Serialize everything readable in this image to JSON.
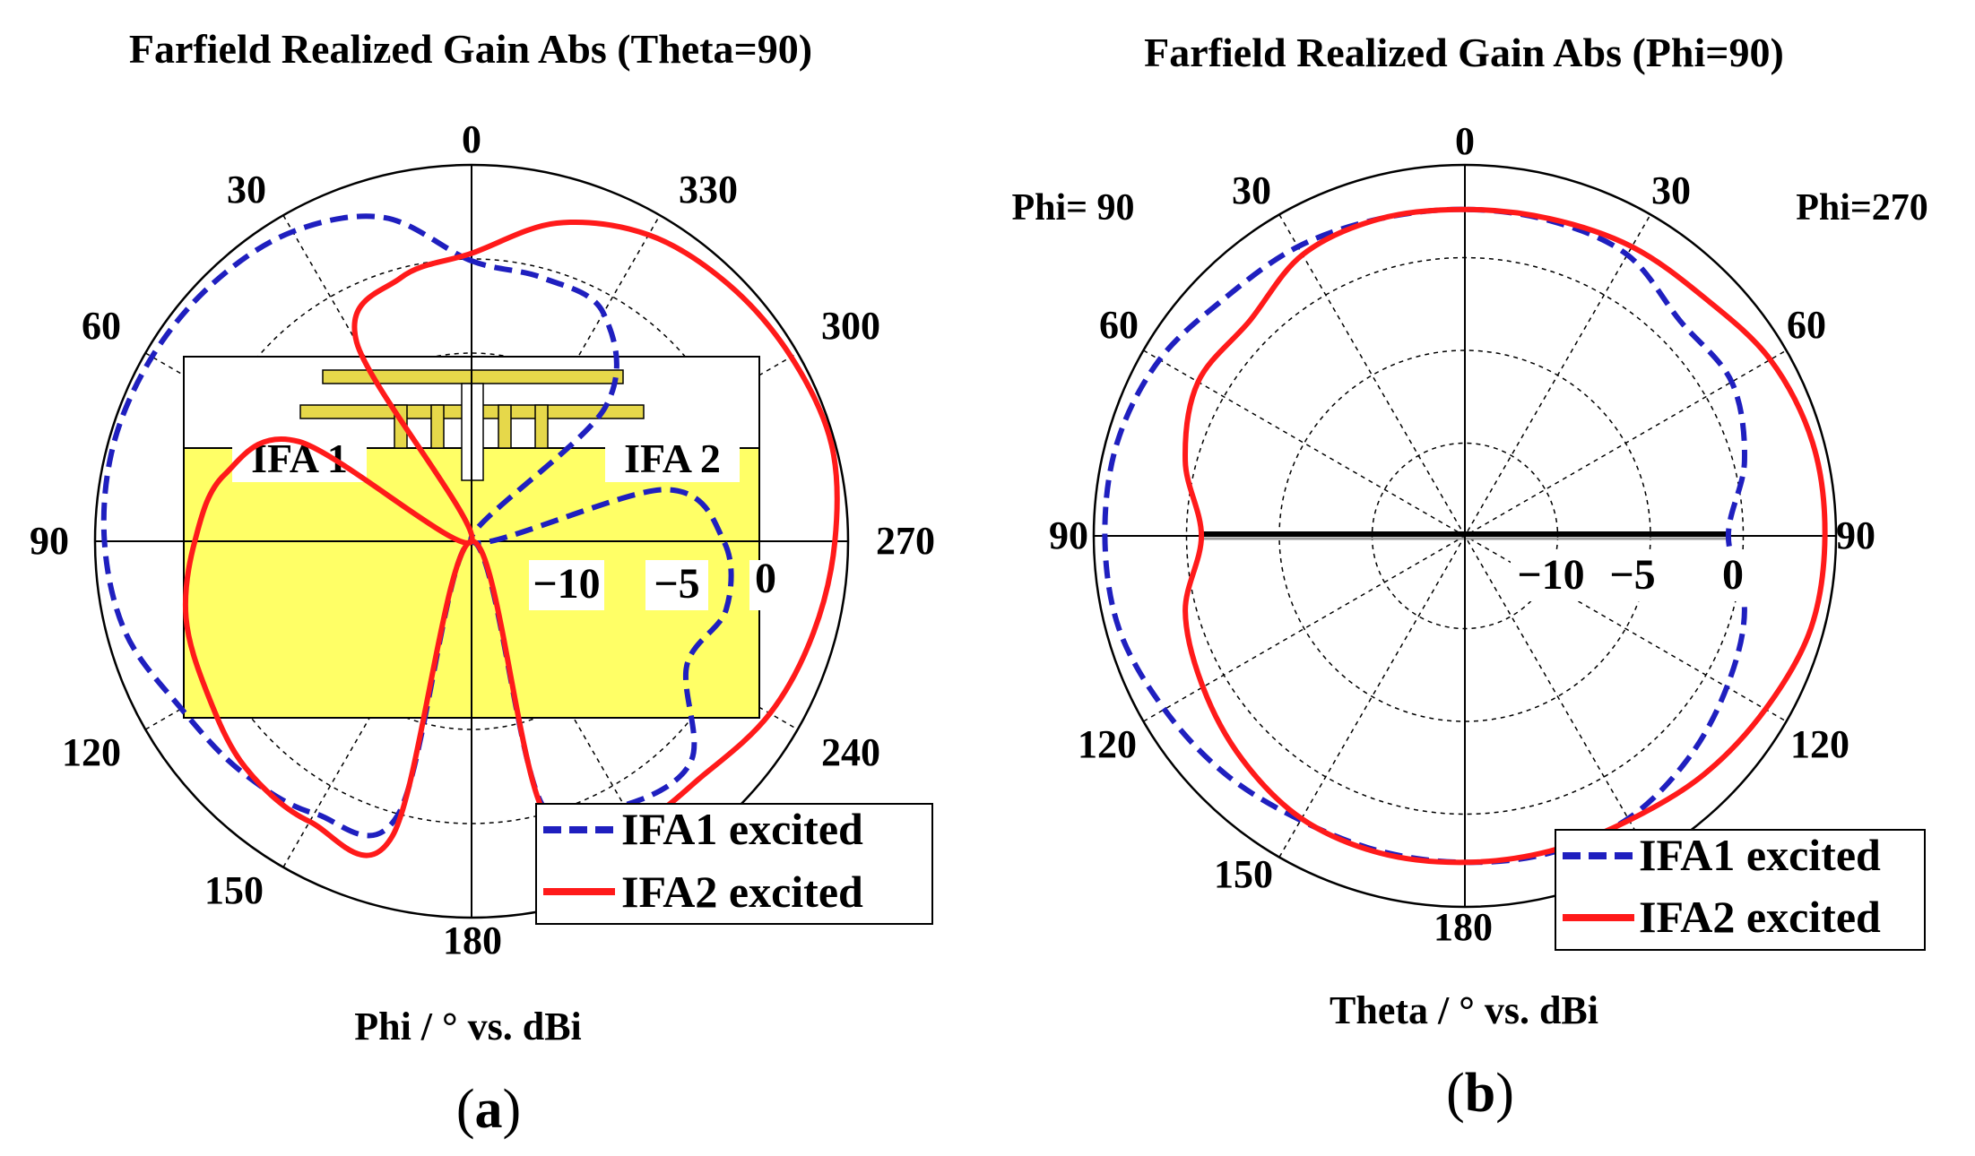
{
  "colors": {
    "ifa1": "#1f1fbf",
    "ifa2": "#ff1a1a",
    "pcb": "#ffff44",
    "antenna": "#e6d84a"
  },
  "panels": [
    {
      "id": "a",
      "title": "Farfield Realized Gain Abs (Theta=90)",
      "xlabel": "Phi / ° vs. dBi",
      "caption_open": "(",
      "caption_letter": "a",
      "caption_close": ")",
      "angle_labels": [
        "0",
        "30",
        "60",
        "90",
        "120",
        "150",
        "180",
        "240",
        "270",
        "300",
        "330"
      ],
      "radial_ticks": [
        "−10",
        "−5",
        "0"
      ],
      "inset_labels": [
        "IFA 1",
        "IFA 2"
      ],
      "legend": [
        "IFA1 excited",
        "IFA2 excited"
      ]
    },
    {
      "id": "b",
      "title": "Farfield Realized Gain Abs (Phi=90)",
      "xlabel": "Theta / ° vs. dBi",
      "caption_open": "(",
      "caption_letter": "b",
      "caption_close": ")",
      "side_labels": [
        "Phi= 90",
        "Phi=270"
      ],
      "angle_labels_left": [
        "0",
        "30",
        "60",
        "90",
        "120",
        "150",
        "180"
      ],
      "angle_labels_right": [
        "30",
        "60",
        "90",
        "120"
      ],
      "radial_ticks": [
        "−10",
        "−5",
        "0"
      ],
      "legend": [
        "IFA1 excited",
        "IFA2 excited"
      ]
    }
  ],
  "chart_data": [
    {
      "type": "polar-line",
      "title": "Farfield Realized Gain Abs (Theta=90)",
      "angle_unit": "deg (Phi)",
      "radial_unit": "dBi",
      "radial_range": [
        -20,
        0
      ],
      "radial_ticks": [
        -15,
        -10,
        -5,
        0
      ],
      "series": [
        {
          "name": "IFA1 excited",
          "style": "dashed",
          "angles": [
            0,
            15,
            30,
            45,
            60,
            75,
            90,
            105,
            120,
            135,
            150,
            165,
            180,
            195,
            210,
            225,
            240,
            255,
            270,
            285,
            300,
            315,
            330,
            345,
            360
          ],
          "values": [
            -5.1,
            -2.2,
            -1.0,
            -0.6,
            -0.4,
            -0.3,
            -0.5,
            -1.0,
            -2.2,
            -2.7,
            -3.3,
            -5.0,
            -20.0,
            -5.5,
            -3.8,
            -3.5,
            -6.8,
            -6.0,
            -6.6,
            -9.4,
            -20.0,
            -10.0,
            -6.0,
            -5.5,
            -5.1
          ]
        },
        {
          "name": "IFA2 excited",
          "style": "solid",
          "angles": [
            0,
            15,
            30,
            45,
            60,
            75,
            90,
            105,
            120,
            135,
            150,
            165,
            180,
            195,
            210,
            225,
            240,
            255,
            270,
            285,
            300,
            315,
            330,
            345,
            360
          ],
          "values": [
            -4.7,
            -5.5,
            -7.8,
            -20.0,
            -9.4,
            -6.4,
            -5.3,
            -4.3,
            -3.8,
            -3.0,
            -2.8,
            -3.8,
            -20.0,
            -5.0,
            -2.7,
            -2.5,
            -1.7,
            -1.2,
            -0.7,
            -0.2,
            -0.4,
            -0.7,
            -1.2,
            -2.5,
            -4.7
          ]
        }
      ],
      "inset": "IFA antenna geometry on yellow PCB"
    },
    {
      "type": "polar-line",
      "title": "Farfield Realized Gain Abs (Phi=90)",
      "angle_unit": "deg (Theta)",
      "radial_unit": "dBi",
      "radial_range": [
        -20,
        0
      ],
      "radial_ticks": [
        -15,
        -10,
        -5,
        0
      ],
      "series": [
        {
          "name": "IFA1 excited",
          "style": "dashed",
          "angles": [
            0,
            15,
            30,
            45,
            60,
            75,
            90,
            105,
            120,
            135,
            150,
            165,
            180,
            195,
            210,
            225,
            240,
            255,
            270,
            285,
            300,
            315,
            330,
            345,
            360
          ],
          "values": [
            -2.4,
            -2.3,
            -2.0,
            -1.8,
            -1.0,
            -0.6,
            -0.6,
            -0.7,
            -1.3,
            -1.8,
            -2.3,
            -2.4,
            -2.4,
            -2.3,
            -2.4,
            -3.0,
            -3.7,
            -4.4,
            -5.8,
            -4.4,
            -3.4,
            -3.6,
            -2.5,
            -2.4,
            -2.4
          ]
        },
        {
          "name": "IFA2 excited",
          "style": "solid",
          "angles": [
            0,
            15,
            30,
            45,
            60,
            75,
            90,
            105,
            120,
            135,
            150,
            165,
            180,
            195,
            210,
            225,
            240,
            255,
            270,
            285,
            300,
            315,
            330,
            345,
            360
          ],
          "values": [
            -2.4,
            -2.3,
            -2.5,
            -3.6,
            -3.4,
            -4.4,
            -5.8,
            -4.4,
            -3.7,
            -3.0,
            -2.4,
            -2.3,
            -2.4,
            -2.4,
            -2.3,
            -1.8,
            -1.3,
            -0.7,
            -0.6,
            -0.6,
            -1.0,
            -1.8,
            -2.0,
            -2.3,
            -2.4
          ]
        }
      ]
    }
  ]
}
